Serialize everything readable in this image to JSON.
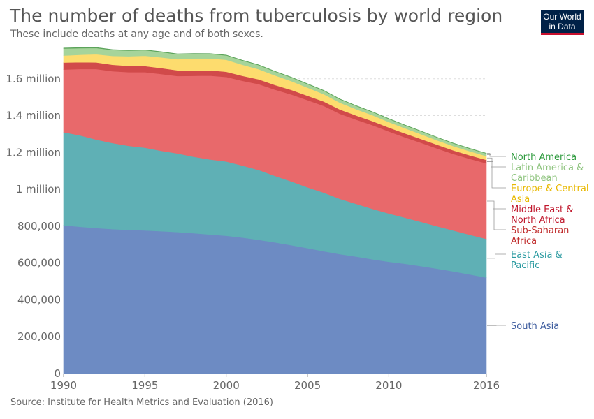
{
  "header": {
    "title": "The number of deaths from tuberculosis by world region",
    "subtitle": "These include deaths at any age and of both sexes."
  },
  "logo": {
    "line1": "Our World",
    "line2": "in Data"
  },
  "footer": {
    "source": "Source: Institute for Health Metrics and Evaluation (2016)"
  },
  "chart_data": {
    "type": "area",
    "stacked": true,
    "title": "The number of deaths from tuberculosis by world region",
    "subtitle": "These include deaths at any age and of both sexes.",
    "xlabel": "",
    "ylabel": "",
    "x": [
      1990,
      1991,
      1992,
      1993,
      1994,
      1995,
      1996,
      1997,
      1998,
      1999,
      2000,
      2001,
      2002,
      2003,
      2004,
      2005,
      2006,
      2007,
      2008,
      2009,
      2010,
      2011,
      2012,
      2013,
      2014,
      2015,
      2016
    ],
    "xlim": [
      1990,
      2016
    ],
    "ylim": [
      0,
      1800000
    ],
    "x_ticks": [
      "1990",
      "1995",
      "2000",
      "2005",
      "2010",
      "2016"
    ],
    "y_ticks": [
      {
        "value": 0,
        "label": "0"
      },
      {
        "value": 200000,
        "label": "200,000"
      },
      {
        "value": 400000,
        "label": "400,000"
      },
      {
        "value": 600000,
        "label": "600,000"
      },
      {
        "value": 800000,
        "label": "800,000"
      },
      {
        "value": 1000000,
        "label": "1 million"
      },
      {
        "value": 1200000,
        "label": "1.2 million"
      },
      {
        "value": 1400000,
        "label": "1.4 million"
      },
      {
        "value": 1600000,
        "label": "1.6 million"
      }
    ],
    "grid": true,
    "legend": "right, inline labels",
    "series": [
      {
        "name": "South Asia",
        "color": "#6d8bc3",
        "label_color": "#3d5c9e",
        "values": [
          805000,
          797000,
          790000,
          784000,
          780000,
          777000,
          773000,
          768000,
          762000,
          755000,
          748000,
          738000,
          726000,
          712000,
          697000,
          681000,
          664000,
          648000,
          635000,
          620000,
          607000,
          596000,
          583000,
          569000,
          554000,
          538000,
          521000
        ]
      },
      {
        "name": "East Asia & Pacific",
        "color": "#5fb0b5",
        "label_color": "#2a9aa0",
        "values": [
          505000,
          496000,
          480000,
          467000,
          456000,
          449000,
          436000,
          427000,
          415000,
          407000,
          403000,
          391000,
          379000,
          361000,
          346000,
          330000,
          318000,
          300000,
          286000,
          274000,
          262000,
          250000,
          240000,
          230000,
          222000,
          215000,
          210000
        ]
      },
      {
        "name": "Sub-Saharan Africa",
        "color": "#e8696b",
        "label_color": "#c02c2c",
        "values": [
          340000,
          360000,
          383000,
          390000,
          400000,
          410000,
          417000,
          420000,
          439000,
          455000,
          459000,
          460000,
          466000,
          468000,
          472000,
          473000,
          471000,
          462000,
          457000,
          454000,
          445000,
          436000,
          429000,
          422000,
          415000,
          412000,
          410000
        ]
      },
      {
        "name": "Middle East & North Africa",
        "color": "#d14a4a",
        "label_color": "#c0172c",
        "values": [
          38000,
          37000,
          36000,
          35000,
          34000,
          33000,
          32000,
          31000,
          30000,
          29000,
          28000,
          27000,
          26000,
          25000,
          24500,
          24000,
          23500,
          23000,
          22500,
          22000,
          21500,
          21000,
          20500,
          20000,
          19500,
          19000,
          18500
        ]
      },
      {
        "name": "Europe & Central Asia",
        "color": "#fddc6e",
        "label_color": "#e8b800",
        "values": [
          38000,
          40000,
          44000,
          48000,
          52000,
          56000,
          58000,
          60000,
          63000,
          64000,
          65000,
          60000,
          55000,
          52000,
          48000,
          44000,
          40000,
          37000,
          34000,
          32000,
          30000,
          28000,
          26000,
          24000,
          23000,
          22000,
          21000
        ]
      },
      {
        "name": "Latin America & Caribbean",
        "color": "#a6d49a",
        "label_color": "#8fc47f",
        "values": [
          38000,
          36000,
          34000,
          32000,
          31000,
          30000,
          29000,
          27000,
          26000,
          25000,
          24000,
          23000,
          22000,
          21000,
          20000,
          19500,
          19000,
          18500,
          18000,
          17500,
          17000,
          16500,
          16000,
          15500,
          15000,
          14500,
          14000
        ]
      },
      {
        "name": "North America",
        "color": "#5ba35a",
        "label_color": "#2c9a3c",
        "values": [
          3000,
          3000,
          2800,
          2600,
          2500,
          2400,
          2300,
          2200,
          2100,
          2000,
          1900,
          1800,
          1800,
          1700,
          1700,
          1600,
          1600,
          1500,
          1500,
          1500,
          1400,
          1400,
          1400,
          1300,
          1300,
          1300,
          1300
        ]
      }
    ],
    "legend_labels": [
      {
        "series": "North America",
        "lines": [
          "North America"
        ]
      },
      {
        "series": "Latin America & Caribbean",
        "lines": [
          "Latin America &",
          "Caribbean"
        ]
      },
      {
        "series": "Europe & Central Asia",
        "lines": [
          "Europe & Central",
          "Asia"
        ]
      },
      {
        "series": "Middle East & North Africa",
        "lines": [
          "Middle East &",
          "North Africa"
        ]
      },
      {
        "series": "Sub-Saharan Africa",
        "lines": [
          "Sub-Saharan",
          "Africa"
        ]
      },
      {
        "series": "East Asia & Pacific",
        "lines": [
          "East Asia &",
          "Pacific"
        ]
      },
      {
        "series": "South Asia",
        "lines": [
          "South Asia"
        ]
      }
    ]
  }
}
